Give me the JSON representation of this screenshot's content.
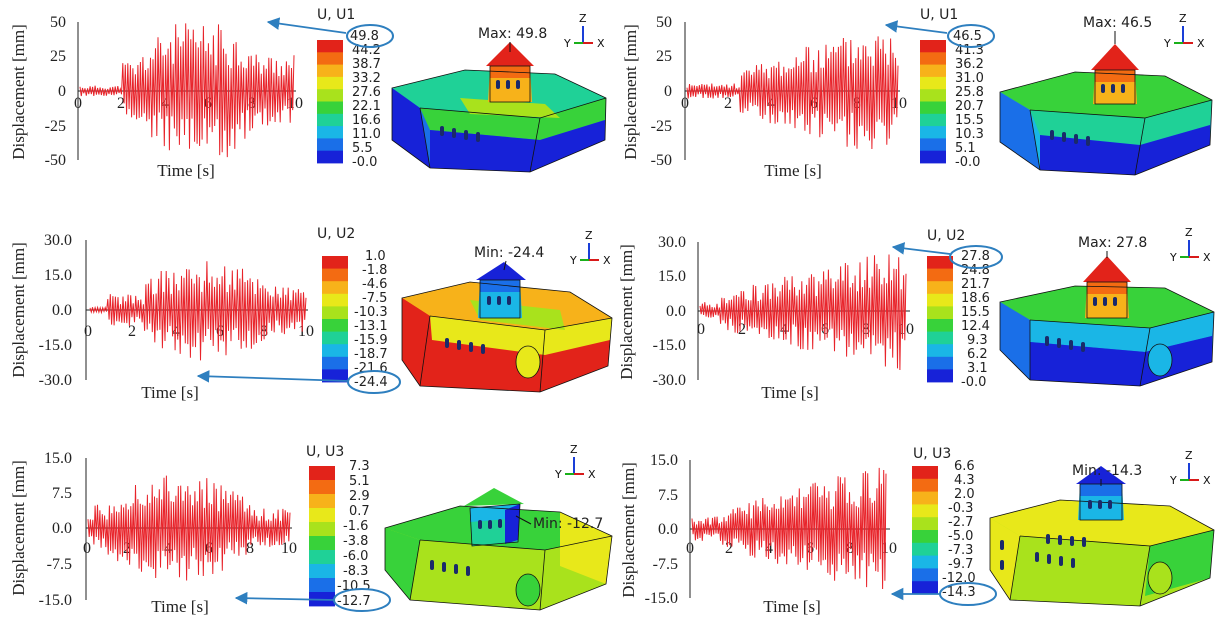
{
  "panels": [
    {
      "id": "p1",
      "ylabel": "Displacement [mm]",
      "xlabel": "Time [s]",
      "yticks": [
        "50",
        "25",
        "0",
        "-25",
        "-50"
      ],
      "xticks": [
        "0",
        "2",
        "4",
        "6",
        "8",
        "10"
      ],
      "legend_title": "U, U1",
      "legend_values": [
        "49.8",
        "44.2",
        "38.7",
        "33.2",
        "27.6",
        "22.1",
        "16.6",
        "11.0",
        "5.5",
        "-0.0"
      ],
      "highlight": "49.8",
      "annotation": "Max: 49.8"
    },
    {
      "id": "p2",
      "ylabel": "Displacement [mm]",
      "xlabel": "Time [s]",
      "yticks": [
        "50",
        "25",
        "0",
        "-25",
        "-50"
      ],
      "xticks": [
        "0",
        "2",
        "4",
        "6",
        "8",
        "10"
      ],
      "legend_title": "U, U1",
      "legend_values": [
        "46.5",
        "41.3",
        "36.2",
        "31.0",
        "25.8",
        "20.7",
        "15.5",
        "10.3",
        "5.1",
        "-0.0"
      ],
      "highlight": "46.5",
      "annotation": "Max: 46.5"
    },
    {
      "id": "p3",
      "ylabel": "Displacement [mm]",
      "xlabel": "Time [s]",
      "yticks": [
        "30.0",
        "15.0",
        "0.0",
        "-15.0",
        "-30.0"
      ],
      "xticks": [
        "0",
        "2",
        "4",
        "6",
        "8",
        "10"
      ],
      "legend_title": "U, U2",
      "legend_values": [
        "1.0",
        "-1.8",
        "-4.6",
        "-7.5",
        "-10.3",
        "-13.1",
        "-15.9",
        "-18.7",
        "-21.6",
        "-24.4"
      ],
      "highlight": "-24.4",
      "annotation": "Min: -24.4"
    },
    {
      "id": "p4",
      "ylabel": "Displacement [mm]",
      "xlabel": "Time [s]",
      "yticks": [
        "30.0",
        "15.0",
        "0.0",
        "-15.0",
        "-30.0"
      ],
      "xticks": [
        "0",
        "2",
        "4",
        "6",
        "8",
        "10"
      ],
      "legend_title": "U, U2",
      "legend_values": [
        "27.8",
        "24.8",
        "21.7",
        "18.6",
        "15.5",
        "12.4",
        "9.3",
        "6.2",
        "3.1",
        "-0.0"
      ],
      "highlight": "27.8",
      "annotation": "Max: 27.8"
    },
    {
      "id": "p5",
      "ylabel": "Displacement [mm]",
      "xlabel": "Time [s]",
      "yticks": [
        "15.0",
        "7.5",
        "0.0",
        "-7.5",
        "-15.0"
      ],
      "xticks": [
        "0",
        "2",
        "4",
        "6",
        "8",
        "10"
      ],
      "legend_title": "U, U3",
      "legend_values": [
        "7.3",
        "5.1",
        "2.9",
        "0.7",
        "-1.6",
        "-3.8",
        "-6.0",
        "-8.3",
        "-10.5",
        "-12.7"
      ],
      "highlight": "-12.7",
      "annotation": "Min: -12.7"
    },
    {
      "id": "p6",
      "ylabel": "Displacement [mm]",
      "xlabel": "Time [s]",
      "yticks": [
        "15.0",
        "7.5",
        "0.0",
        "-7.5",
        "-15.0"
      ],
      "xticks": [
        "0",
        "2",
        "4",
        "6",
        "8",
        "10"
      ],
      "legend_title": "U, U3",
      "legend_values": [
        "6.6",
        "4.3",
        "2.0",
        "-0.3",
        "-2.7",
        "-5.0",
        "-7.3",
        "-9.7",
        "-12.0",
        "-14.3"
      ],
      "highlight": "-14.3",
      "annotation": "Min: -14.3"
    }
  ],
  "triad": {
    "z": "Z",
    "y": "Y",
    "x": "X"
  },
  "colors": {
    "signal": "#e8232a",
    "callout": "#2e7fbf",
    "scale": [
      "#e2231a",
      "#f36b12",
      "#f7b21a",
      "#e8e81a",
      "#a9e21c",
      "#38d23a",
      "#1fd197",
      "#1ab6e6",
      "#1a6fe8",
      "#1722d8"
    ]
  }
}
